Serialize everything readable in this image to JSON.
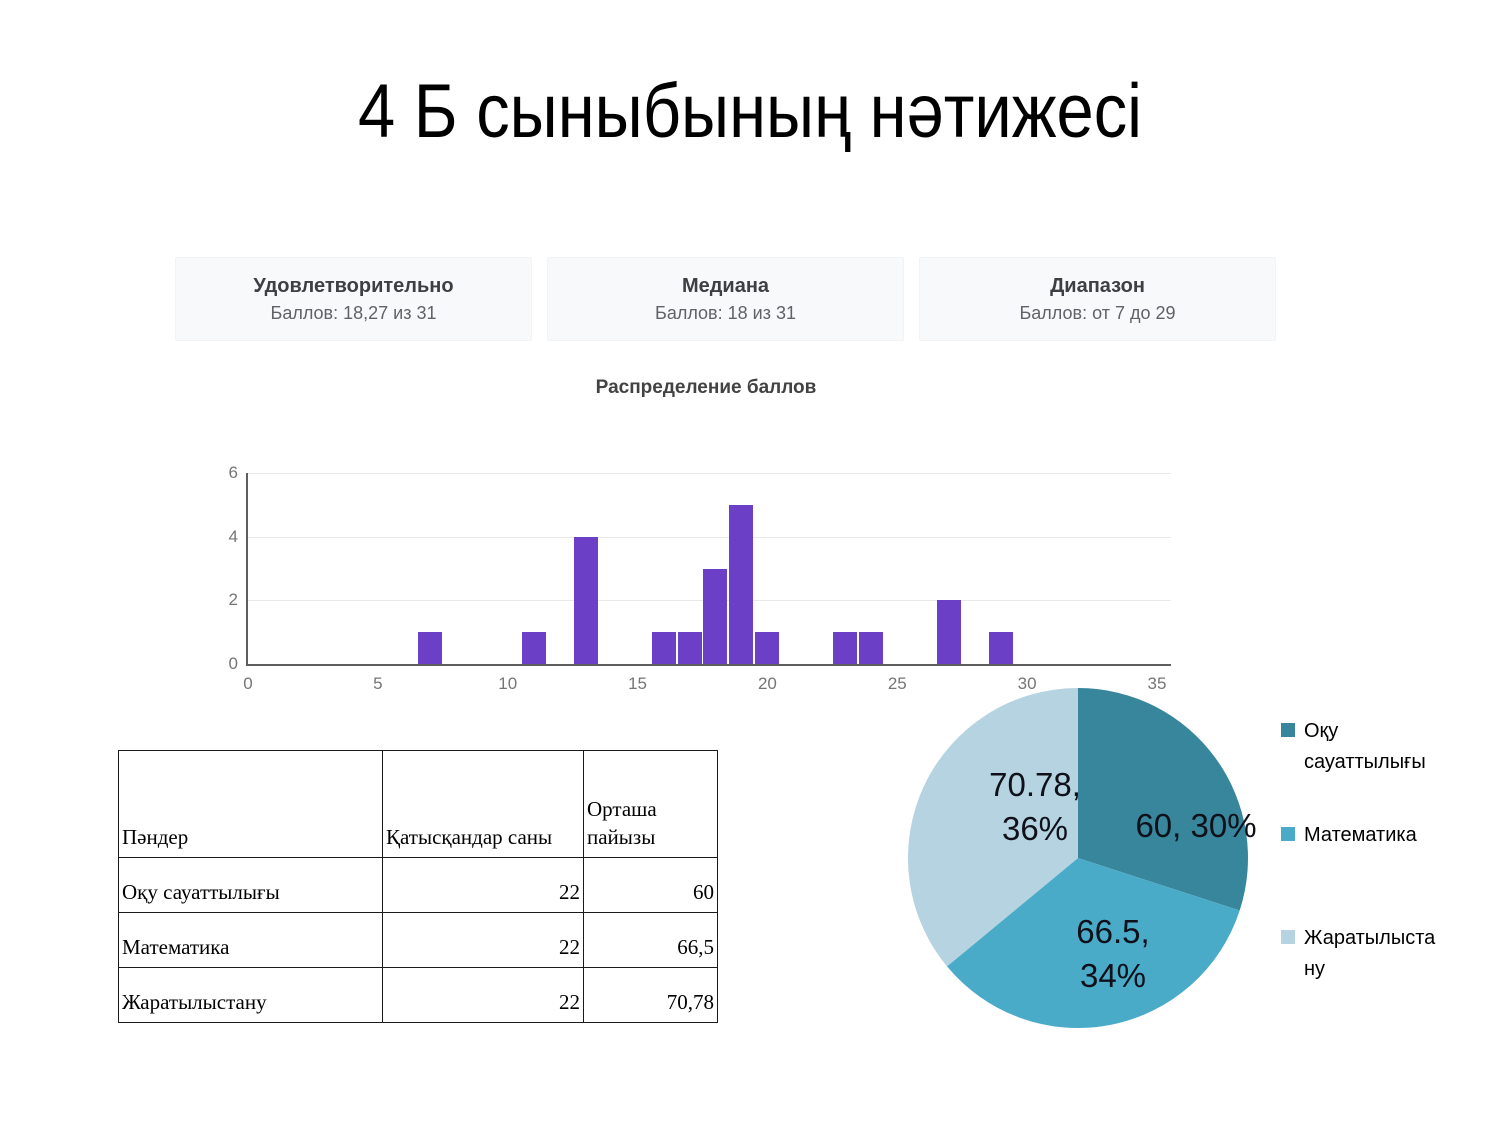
{
  "slide": {
    "title": "4 Б сыныбының нәтижесі"
  },
  "stat_cards": [
    {
      "label": "Удовлетворительно",
      "value": "Баллов: 18,27 из 31"
    },
    {
      "label": "Медиана",
      "value": "Баллов: 18 из 31"
    },
    {
      "label": "Диапазон",
      "value": "Баллов: от 7 до 29"
    }
  ],
  "chart_data": [
    {
      "type": "bar",
      "title": "Распределение баллов",
      "x": [
        7,
        11,
        13,
        16,
        17,
        18,
        19,
        20,
        23,
        24,
        27,
        29
      ],
      "values": [
        1,
        1,
        4,
        1,
        1,
        3,
        5,
        1,
        1,
        1,
        2,
        1
      ],
      "xlabel": "",
      "ylabel": "",
      "xlim": [
        0,
        35
      ],
      "ylim": [
        0,
        6
      ],
      "x_ticks": [
        0,
        5,
        10,
        15,
        20,
        25,
        30,
        35
      ],
      "y_ticks": [
        0,
        2,
        4,
        6
      ],
      "grid": true,
      "bar_color": "#6b40c6"
    },
    {
      "type": "pie",
      "start_angle_deg_from_north": 0,
      "direction": "clockwise",
      "legend_position": "right",
      "slices": [
        {
          "name": "Оқу сауаттылығы",
          "value": 60,
          "percent": 30,
          "color": "#38869c",
          "label_lines": [
            "60, 30%"
          ]
        },
        {
          "name": "Математика",
          "value": 66.5,
          "percent": 34,
          "color": "#4aabc8",
          "label_lines": [
            "66.5,",
            "34%"
          ]
        },
        {
          "name": "Жаратылыстану",
          "value": 70.78,
          "percent": 36,
          "color": "#b5d3e0",
          "label_lines": [
            "70.78,",
            "36%"
          ]
        }
      ],
      "legend": [
        {
          "lines": [
            "Оқу",
            "сауаттылығы"
          ],
          "color": "#38869c"
        },
        {
          "lines": [
            "Математика",
            ""
          ],
          "color": "#4aabc8"
        },
        {
          "lines": [
            "Жаратылыста",
            "ну"
          ],
          "color": "#b5d3e0"
        }
      ]
    }
  ],
  "table": {
    "headers": [
      "Пәндер",
      "Қатысқандар саны",
      "Орташа пайызы"
    ],
    "rows": [
      [
        "Оқу сауаттылығы",
        "22",
        "60"
      ],
      [
        "Математика",
        "22",
        "66,5"
      ],
      [
        "Жаратылыстану",
        "22",
        "70,78"
      ]
    ]
  }
}
